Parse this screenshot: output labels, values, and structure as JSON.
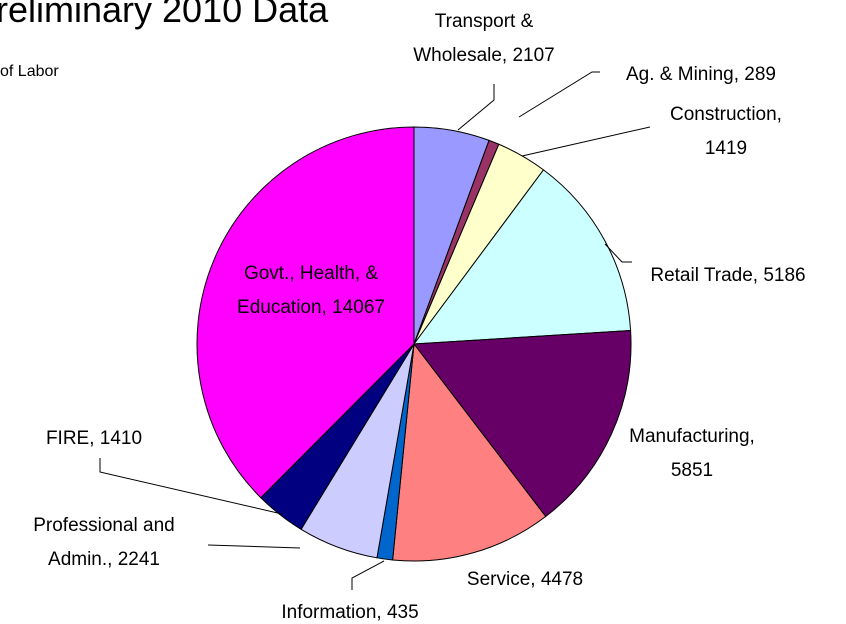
{
  "chart_data": {
    "type": "pie",
    "title": "reliminary 2010 Data",
    "subtitle": "of Labor",
    "values": [
      2107,
      289,
      1419,
      5186,
      5851,
      4478,
      435,
      2241,
      1410,
      14067
    ],
    "value_labels": [
      "Transport & Wholesale, 2107",
      "Ag. & Mining, 289",
      "Construction, 1419",
      "Retail Trade, 5186",
      "Manufacturing, 5851",
      "Service, 4478",
      "Information, 435",
      "Professional and Admin., 2241",
      "FIRE, 1410",
      "Govt., Health, & Education, 14067"
    ],
    "colors": [
      "#9999ff",
      "#993366",
      "#ffffcc",
      "#ccffff",
      "#660066",
      "#ff8080",
      "#0066cc",
      "#ccccff",
      "#000080",
      "#ff00ff"
    ]
  }
}
